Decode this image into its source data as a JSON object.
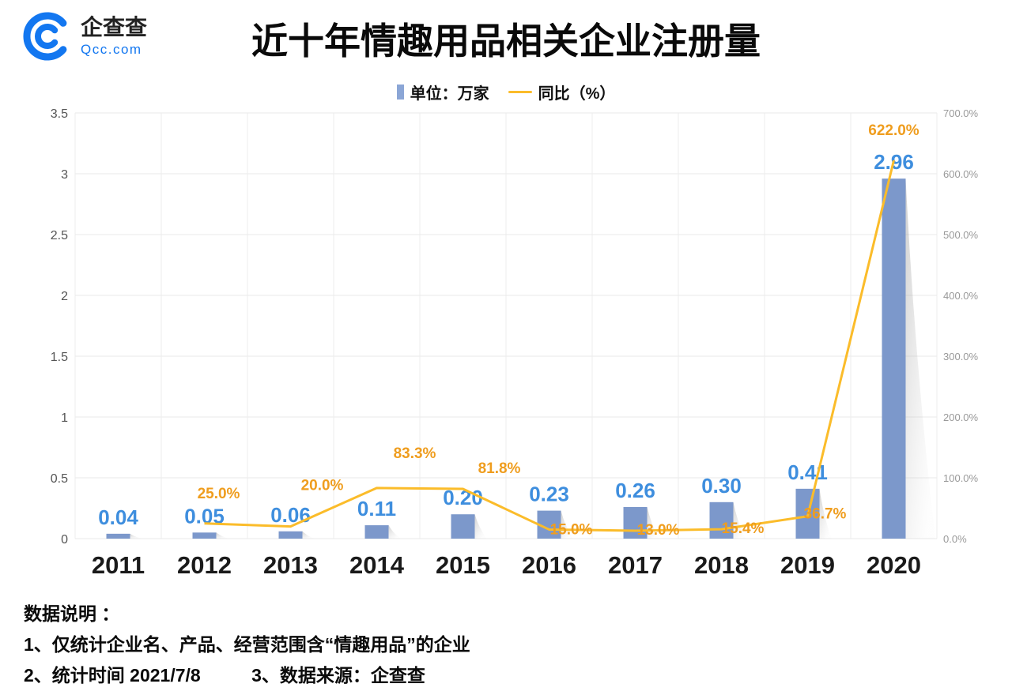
{
  "header": {
    "logo_text": "企查查",
    "logo_domain": "Qcc.com",
    "title": "近十年情趣用品相关企业注册量"
  },
  "legend": {
    "bar_label": "单位：万家",
    "line_label": "同比（%）"
  },
  "chart_data": {
    "type": "bar",
    "categories": [
      "2011",
      "2012",
      "2013",
      "2014",
      "2015",
      "2016",
      "2017",
      "2018",
      "2019",
      "2020"
    ],
    "series": [
      {
        "name": "单位：万家",
        "type": "bar",
        "axis": "left",
        "color": "#7c98cb",
        "label_color": "#3e8ede",
        "values": [
          0.04,
          0.05,
          0.06,
          0.11,
          0.2,
          0.23,
          0.26,
          0.3,
          0.41,
          2.96
        ],
        "labels": [
          "0.04",
          "0.05",
          "0.06",
          "0.11",
          "0.20",
          "0.23",
          "0.26",
          "0.30",
          "0.41",
          "2.96"
        ]
      },
      {
        "name": "同比（%）",
        "type": "line",
        "axis": "right",
        "color": "#fbbc2a",
        "label_color": "#ef9d1e",
        "values": [
          null,
          25.0,
          20.0,
          83.3,
          81.8,
          15.0,
          13.0,
          15.4,
          36.7,
          622.0
        ],
        "labels": [
          null,
          "25.0%",
          "20.0%",
          "83.3%",
          "81.8%",
          "15.0%",
          "13.0%",
          "15.4%",
          "36.7%",
          "622.0%"
        ],
        "label_offsets": [
          null,
          [
            18,
            -32
          ],
          [
            40,
            -46
          ],
          [
            48,
            -38
          ],
          [
            46,
            -20
          ],
          [
            28,
            6
          ],
          [
            29,
            5
          ],
          [
            27,
            5
          ],
          [
            22,
            3
          ],
          [
            0,
            -32
          ]
        ]
      }
    ],
    "left_axis": {
      "min": 0,
      "max": 3.5,
      "step": 0.5,
      "ticks": [
        "0",
        "0.5",
        "1",
        "1.5",
        "2",
        "2.5",
        "3",
        "3.5"
      ]
    },
    "right_axis": {
      "min": 0,
      "max": 700,
      "step": 100,
      "ticks": [
        "0.0%",
        "100.0%",
        "200.0%",
        "300.0%",
        "400.0%",
        "500.0%",
        "600.0%",
        "700.0%"
      ]
    },
    "grid": true,
    "legend_position": "top"
  },
  "footer": {
    "heading": "数据说明 ：",
    "note1": "1、仅统计企业名、产品、经营范围含“情趣用品”的企业",
    "note2": "2、统计时间 2021/7/8",
    "note3": "3、数据来源：企查查"
  }
}
